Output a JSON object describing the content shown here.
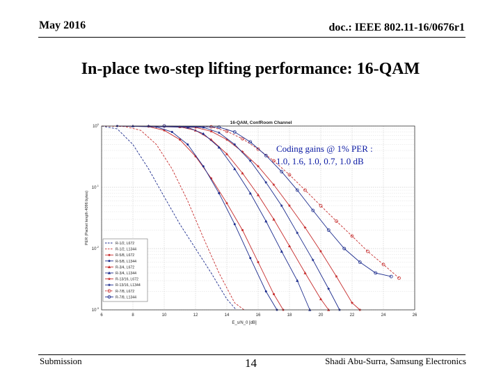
{
  "header": {
    "date": "May 2016",
    "doc_id": "doc.: IEEE 802.11-16/0676r1"
  },
  "slide": {
    "title": "In-place two-step lifting performance: 16-QAM",
    "annotation_line1": "Coding gains @ 1% PER :",
    "annotation_line2": "1.0, 1.6, 1.0, 0.7, 1.0  dB"
  },
  "footer": {
    "left": "Submission",
    "page_number": "14",
    "right": "Shadi Abu-Surra, Samsung Electronics"
  },
  "chart_data": {
    "type": "line",
    "title": "16-QAM, ConfRoom Channel",
    "xlabel": "E_s/N_0 [dB]",
    "ylabel": "PER (Packet length 4096 bytes)",
    "xlim": [
      6,
      26
    ],
    "ylim": [
      0.001,
      1
    ],
    "yscale": "log",
    "x_ticks": [
      "6",
      "8",
      "10",
      "12",
      "14",
      "16",
      "18",
      "20",
      "22",
      "24",
      "26"
    ],
    "y_ticks": [
      "10^0",
      "10^-1",
      "10^-2",
      "10^-3"
    ],
    "grid": true,
    "legend_position": "bottom-left",
    "series": [
      {
        "name": "R-1/2, L672",
        "color": "#1a2a8c",
        "style": "dashed",
        "marker": "none",
        "points": [
          [
            6,
            1
          ],
          [
            7,
            0.9
          ],
          [
            8,
            0.5
          ],
          [
            9,
            0.2
          ],
          [
            10,
            0.07
          ],
          [
            11,
            0.025
          ],
          [
            12,
            0.01
          ],
          [
            13,
            0.004
          ],
          [
            14,
            0.0015
          ],
          [
            14.6,
            0.0009
          ]
        ]
      },
      {
        "name": "R-1/2, L1344",
        "color": "#c62b2b",
        "style": "dashed",
        "marker": "none",
        "points": [
          [
            6,
            1
          ],
          [
            7.5,
            0.98
          ],
          [
            8.5,
            0.85
          ],
          [
            9.5,
            0.5
          ],
          [
            10.5,
            0.2
          ],
          [
            11.5,
            0.06
          ],
          [
            12.5,
            0.015
          ],
          [
            13.5,
            0.004
          ],
          [
            14.5,
            0.0013
          ],
          [
            15.1,
            0.0009
          ]
        ]
      },
      {
        "name": "R-5/8, L672",
        "color": "#c62b2b",
        "style": "solid",
        "marker": "dot",
        "points": [
          [
            7,
            1
          ],
          [
            9,
            0.98
          ],
          [
            10,
            0.85
          ],
          [
            11,
            0.6
          ],
          [
            12,
            0.32
          ],
          [
            13,
            0.14
          ],
          [
            14,
            0.055
          ],
          [
            15,
            0.02
          ],
          [
            16,
            0.006
          ],
          [
            17,
            0.0018
          ],
          [
            17.6,
            0.0009
          ]
        ]
      },
      {
        "name": "R-5/8, L1344",
        "color": "#1a2a8c",
        "style": "solid",
        "marker": "dot",
        "points": [
          [
            7,
            1
          ],
          [
            9.5,
            0.97
          ],
          [
            10.5,
            0.8
          ],
          [
            11.5,
            0.5
          ],
          [
            12.5,
            0.22
          ],
          [
            13.5,
            0.08
          ],
          [
            14.5,
            0.025
          ],
          [
            15.5,
            0.007
          ],
          [
            16.5,
            0.002
          ],
          [
            17.2,
            0.0009
          ]
        ]
      },
      {
        "name": "R-3/4, L672",
        "color": "#c62b2b",
        "style": "solid",
        "marker": "triangle",
        "points": [
          [
            8,
            1
          ],
          [
            11,
            0.97
          ],
          [
            12,
            0.85
          ],
          [
            13,
            0.6
          ],
          [
            14,
            0.35
          ],
          [
            15,
            0.17
          ],
          [
            16,
            0.075
          ],
          [
            17,
            0.03
          ],
          [
            18,
            0.011
          ],
          [
            19,
            0.004
          ],
          [
            20,
            0.0015
          ],
          [
            20.5,
            0.0009
          ]
        ]
      },
      {
        "name": "R-3/4, L1344",
        "color": "#1a2a8c",
        "style": "solid",
        "marker": "triangle",
        "points": [
          [
            8,
            1
          ],
          [
            11.5,
            0.95
          ],
          [
            12.5,
            0.75
          ],
          [
            13.5,
            0.45
          ],
          [
            14.5,
            0.2
          ],
          [
            15.5,
            0.08
          ],
          [
            16.5,
            0.028
          ],
          [
            17.5,
            0.009
          ],
          [
            18.5,
            0.003
          ],
          [
            19.3,
            0.0009
          ]
        ]
      },
      {
        "name": "R-13/16, L672",
        "color": "#c62b2b",
        "style": "solid",
        "marker": "star",
        "points": [
          [
            9,
            1
          ],
          [
            12,
            0.95
          ],
          [
            13,
            0.82
          ],
          [
            14,
            0.6
          ],
          [
            15,
            0.38
          ],
          [
            16,
            0.22
          ],
          [
            17,
            0.11
          ],
          [
            18,
            0.05
          ],
          [
            19,
            0.022
          ],
          [
            20,
            0.009
          ],
          [
            21,
            0.0035
          ],
          [
            22,
            0.0013
          ],
          [
            22.5,
            0.0009
          ]
        ]
      },
      {
        "name": "R-13/16, L1344",
        "color": "#1a2a8c",
        "style": "solid",
        "marker": "star",
        "points": [
          [
            9,
            1
          ],
          [
            12.5,
            0.95
          ],
          [
            13.5,
            0.78
          ],
          [
            14.5,
            0.5
          ],
          [
            15.5,
            0.27
          ],
          [
            16.5,
            0.12
          ],
          [
            17.5,
            0.05
          ],
          [
            18.5,
            0.018
          ],
          [
            19.5,
            0.0065
          ],
          [
            20.5,
            0.0022
          ],
          [
            21.2,
            0.0009
          ]
        ]
      },
      {
        "name": "R-7/8, L672",
        "color": "#c62b2b",
        "style": "dashed",
        "marker": "circle",
        "points": [
          [
            10,
            1
          ],
          [
            13,
            0.97
          ],
          [
            14,
            0.82
          ],
          [
            15,
            0.62
          ],
          [
            16,
            0.42
          ],
          [
            17,
            0.27
          ],
          [
            18,
            0.16
          ],
          [
            19,
            0.09
          ],
          [
            20,
            0.05
          ],
          [
            21,
            0.028
          ],
          [
            22,
            0.016
          ],
          [
            23,
            0.009
          ],
          [
            24,
            0.0055
          ],
          [
            25,
            0.0033
          ]
        ]
      },
      {
        "name": "R-7/8, L1344",
        "color": "#1a2a8c",
        "style": "solid",
        "marker": "circle",
        "points": [
          [
            10,
            1
          ],
          [
            13.5,
            0.96
          ],
          [
            14.5,
            0.8
          ],
          [
            15.5,
            0.55
          ],
          [
            16.5,
            0.33
          ],
          [
            17.5,
            0.18
          ],
          [
            18.5,
            0.09
          ],
          [
            19.5,
            0.042
          ],
          [
            20.5,
            0.02
          ],
          [
            21.5,
            0.01
          ],
          [
            22.5,
            0.006
          ],
          [
            23.5,
            0.004
          ],
          [
            24.5,
            0.0035
          ]
        ]
      }
    ]
  }
}
